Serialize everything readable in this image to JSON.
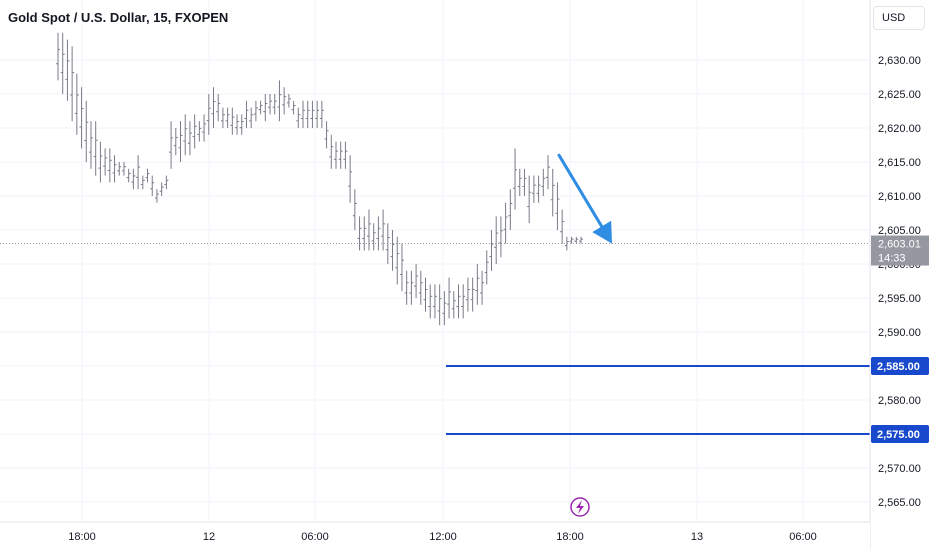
{
  "header": {
    "title": "Gold Spot / U.S. Dollar, 15, FXOPEN",
    "currency": "USD"
  },
  "colors": {
    "bars": "#787b86",
    "grid": "#f0f3fa",
    "level_lines": "#1848cc",
    "arrow": "#2f8de4",
    "price_line": "#9598a1",
    "current_price_tag": "#9598a1",
    "event_icon": "#9c27b0"
  },
  "chart_data": {
    "type": "ohlc",
    "symbol": "Gold Spot / U.S. Dollar",
    "interval": "15",
    "source": "FXOPEN",
    "x_ticks": [
      "18:00",
      "12",
      "06:00",
      "12:00",
      "18:00",
      "13",
      "06:00"
    ],
    "y_ticks": [
      2565,
      2570,
      2575,
      2580,
      2585,
      2590,
      2595,
      2600,
      2605,
      2610,
      2615,
      2620,
      2625,
      2630
    ],
    "ylim": [
      2563,
      2634
    ],
    "current_price": {
      "value": "2,603.01",
      "countdown": "14:33"
    },
    "levels": [
      {
        "label": "2,585.00",
        "value": 2585
      },
      {
        "label": "2,575.00",
        "value": 2575
      }
    ],
    "arrow": {
      "direction": "down",
      "from_price": 2616,
      "to_price": 2603
    },
    "highs": [
      2634,
      2634,
      2633,
      2632,
      2628,
      2626,
      2624,
      2621,
      2621,
      2618,
      2617,
      2617,
      2616,
      2615,
      2615,
      2614,
      2614,
      2616,
      2613,
      2614,
      2613,
      2611,
      2612,
      2613,
      2621,
      2620,
      2621,
      2622,
      2621,
      2622,
      2621,
      2622,
      2625,
      2626,
      2625,
      2623,
      2623,
      2623,
      2622,
      2622,
      2624,
      2623,
      2624,
      2624,
      2625,
      2625,
      2625,
      2627,
      2626,
      2625,
      2624,
      2623,
      2624,
      2624,
      2624,
      2624,
      2624,
      2621,
      2619,
      2618,
      2618,
      2618,
      2616,
      2611,
      2607,
      2607,
      2608,
      2606,
      2607,
      2608,
      2606,
      2605,
      2604,
      2603,
      2599,
      2599,
      2600,
      2599,
      2598,
      2597,
      2597,
      2597,
      2596,
      2598,
      2596,
      2597,
      2597,
      2598,
      2598,
      2600,
      2599,
      2602,
      2605,
      2607,
      2607,
      2609,
      2611,
      2617,
      2614,
      2614,
      2613,
      2613,
      2613,
      2614,
      2616,
      2614,
      2612,
      2608,
      2604,
      2604,
      2604,
      2604
    ],
    "lows": [
      2627,
      2625,
      2624,
      2621,
      2619,
      2617,
      2615,
      2614,
      2613,
      2612,
      2613,
      2612,
      2612,
      2613,
      2613,
      2612,
      2611,
      2611,
      2611,
      2612,
      2610,
      2609,
      2610,
      2611,
      2614,
      2616,
      2615,
      2616,
      2616,
      2617,
      2618,
      2618,
      2619,
      2620,
      2621,
      2620,
      2620,
      2619,
      2619,
      2619,
      2620,
      2620,
      2621,
      2622,
      2621,
      2622,
      2622,
      2621,
      2622,
      2623,
      2622,
      2620,
      2620,
      2620,
      2620,
      2620,
      2620,
      2617,
      2614,
      2614,
      2614,
      2614,
      2609,
      2605,
      2602,
      2602,
      2602,
      2602,
      2602,
      2602,
      2600,
      2599,
      2597,
      2596,
      2594,
      2594,
      2595,
      2594,
      2593,
      2592,
      2592,
      2591,
      2591,
      2592,
      2592,
      2592,
      2592,
      2593,
      2593,
      2594,
      2594,
      2597,
      2599,
      2600,
      2601,
      2603,
      2605,
      2608,
      2610,
      2610,
      2606,
      2609,
      2609,
      2610,
      2611,
      2607,
      2605,
      2603,
      2602,
      2603,
      2603,
      2603
    ]
  }
}
